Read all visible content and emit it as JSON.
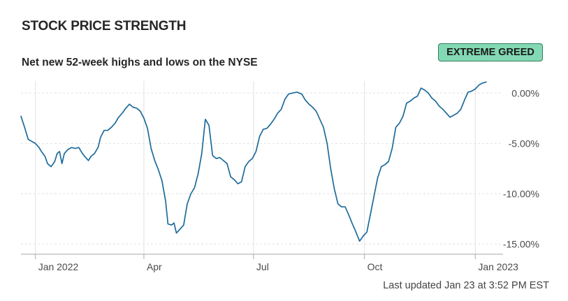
{
  "header": {
    "title": "STOCK PRICE STRENGTH",
    "subtitle": "Net new 52-week highs and lows on the NYSE",
    "badge": "EXTREME GREED"
  },
  "footer": {
    "updated": "Last updated Jan 23 at 3:52 PM EST"
  },
  "colors": {
    "line": "#1e6b9a",
    "badge_bg": "#83d9b4",
    "grid": "#e2e2e2",
    "axis": "#aaaaaa"
  },
  "chart_data": {
    "type": "line",
    "title": "STOCK PRICE STRENGTH",
    "subtitle": "Net new 52-week highs and lows on the NYSE",
    "x_ticks": [
      {
        "label": "Jan 2022",
        "date": "2022-01-01"
      },
      {
        "label": "Apr",
        "date": "2022-04-01"
      },
      {
        "label": "Jul",
        "date": "2022-07-01"
      },
      {
        "label": "Oct",
        "date": "2022-10-01"
      },
      {
        "label": "Jan 2023",
        "date": "2023-01-01"
      }
    ],
    "y_ticks": [
      {
        "label": "0.00%",
        "value": 0
      },
      {
        "label": "-5.00%",
        "value": -5
      },
      {
        "label": "-10.00%",
        "value": -10
      },
      {
        "label": "-15.00%",
        "value": -15
      }
    ],
    "xlim": [
      "2021-12-20",
      "2023-01-24"
    ],
    "ylim": [
      -16,
      1.2
    ],
    "grid": "dashed horizontal, solid vertical",
    "series": [
      {
        "points": [
          [
            "2021-12-20",
            -2.3
          ],
          [
            "2021-12-23",
            -3.4
          ],
          [
            "2021-12-26",
            -4.6
          ],
          [
            "2021-12-29",
            -4.8
          ],
          [
            "2022-01-01",
            -5.0
          ],
          [
            "2022-01-04",
            -5.4
          ],
          [
            "2022-01-06",
            -5.8
          ],
          [
            "2022-01-09",
            -6.3
          ],
          [
            "2022-01-11",
            -7.0
          ],
          [
            "2022-01-14",
            -7.3
          ],
          [
            "2022-01-17",
            -6.8
          ],
          [
            "2022-01-19",
            -6.0
          ],
          [
            "2022-01-21",
            -5.8
          ],
          [
            "2022-01-23",
            -7.0
          ],
          [
            "2022-01-25",
            -6.0
          ],
          [
            "2022-01-28",
            -5.6
          ],
          [
            "2022-01-31",
            -5.4
          ],
          [
            "2022-02-03",
            -5.5
          ],
          [
            "2022-02-06",
            -5.4
          ],
          [
            "2022-02-09",
            -6.0
          ],
          [
            "2022-02-11",
            -6.3
          ],
          [
            "2022-02-14",
            -6.7
          ],
          [
            "2022-02-16",
            -6.3
          ],
          [
            "2022-02-19",
            -6.0
          ],
          [
            "2022-02-22",
            -5.4
          ],
          [
            "2022-02-24",
            -4.4
          ],
          [
            "2022-02-27",
            -3.7
          ],
          [
            "2022-03-02",
            -3.7
          ],
          [
            "2022-03-05",
            -3.4
          ],
          [
            "2022-03-08",
            -3.0
          ],
          [
            "2022-03-11",
            -2.4
          ],
          [
            "2022-03-14",
            -2.0
          ],
          [
            "2022-03-17",
            -1.5
          ],
          [
            "2022-03-20",
            -1.1
          ],
          [
            "2022-03-23",
            -1.4
          ],
          [
            "2022-03-26",
            -1.5
          ],
          [
            "2022-03-29",
            -1.8
          ],
          [
            "2022-04-01",
            -2.5
          ],
          [
            "2022-04-04",
            -3.5
          ],
          [
            "2022-04-07",
            -5.5
          ],
          [
            "2022-04-10",
            -6.7
          ],
          [
            "2022-04-13",
            -7.6
          ],
          [
            "2022-04-16",
            -8.7
          ],
          [
            "2022-04-19",
            -10.7
          ],
          [
            "2022-04-21",
            -13.0
          ],
          [
            "2022-04-24",
            -13.1
          ],
          [
            "2022-04-26",
            -12.9
          ],
          [
            "2022-04-28",
            -13.9
          ],
          [
            "2022-05-01",
            -13.5
          ],
          [
            "2022-05-04",
            -13.1
          ],
          [
            "2022-05-07",
            -11.0
          ],
          [
            "2022-05-10",
            -10.0
          ],
          [
            "2022-05-13",
            -9.4
          ],
          [
            "2022-05-16",
            -8.0
          ],
          [
            "2022-05-19",
            -6.0
          ],
          [
            "2022-05-22",
            -2.6
          ],
          [
            "2022-05-25",
            -3.2
          ],
          [
            "2022-05-28",
            -6.2
          ],
          [
            "2022-05-31",
            -6.5
          ],
          [
            "2022-06-03",
            -6.4
          ],
          [
            "2022-06-06",
            -6.7
          ],
          [
            "2022-06-09",
            -7.0
          ],
          [
            "2022-06-12",
            -8.3
          ],
          [
            "2022-06-15",
            -8.6
          ],
          [
            "2022-06-18",
            -9.0
          ],
          [
            "2022-06-21",
            -8.8
          ],
          [
            "2022-06-24",
            -7.3
          ],
          [
            "2022-06-27",
            -6.8
          ],
          [
            "2022-06-30",
            -6.5
          ],
          [
            "2022-07-03",
            -5.8
          ],
          [
            "2022-07-06",
            -4.3
          ],
          [
            "2022-07-09",
            -3.6
          ],
          [
            "2022-07-12",
            -3.5
          ],
          [
            "2022-07-15",
            -3.1
          ],
          [
            "2022-07-18",
            -2.6
          ],
          [
            "2022-07-21",
            -2.0
          ],
          [
            "2022-07-24",
            -1.6
          ],
          [
            "2022-07-27",
            -0.6
          ],
          [
            "2022-07-30",
            -0.1
          ],
          [
            "2022-08-02",
            0.0
          ],
          [
            "2022-08-06",
            0.1
          ],
          [
            "2022-08-10",
            -0.1
          ],
          [
            "2022-08-13",
            -0.7
          ],
          [
            "2022-08-16",
            -1.1
          ],
          [
            "2022-08-19",
            -1.4
          ],
          [
            "2022-08-22",
            -1.8
          ],
          [
            "2022-08-25",
            -2.6
          ],
          [
            "2022-08-28",
            -3.4
          ],
          [
            "2022-08-31",
            -5.0
          ],
          [
            "2022-09-03",
            -7.5
          ],
          [
            "2022-09-06",
            -9.5
          ],
          [
            "2022-09-09",
            -11.0
          ],
          [
            "2022-09-12",
            -11.3
          ],
          [
            "2022-09-15",
            -11.3
          ],
          [
            "2022-09-18",
            -12.1
          ],
          [
            "2022-09-21",
            -13.0
          ],
          [
            "2022-09-24",
            -13.8
          ],
          [
            "2022-09-27",
            -14.7
          ],
          [
            "2022-09-30",
            -14.2
          ],
          [
            "2022-10-03",
            -13.8
          ],
          [
            "2022-10-06",
            -12.0
          ],
          [
            "2022-10-09",
            -10.2
          ],
          [
            "2022-10-12",
            -8.4
          ],
          [
            "2022-10-15",
            -7.3
          ],
          [
            "2022-10-18",
            -7.1
          ],
          [
            "2022-10-21",
            -6.8
          ],
          [
            "2022-10-24",
            -5.5
          ],
          [
            "2022-10-27",
            -3.4
          ],
          [
            "2022-10-30",
            -3.0
          ],
          [
            "2022-11-02",
            -2.3
          ],
          [
            "2022-11-05",
            -1.0
          ],
          [
            "2022-11-08",
            -0.8
          ],
          [
            "2022-11-11",
            -0.5
          ],
          [
            "2022-11-14",
            -0.3
          ],
          [
            "2022-11-17",
            0.5
          ],
          [
            "2022-11-20",
            0.3
          ],
          [
            "2022-11-23",
            0.0
          ],
          [
            "2022-11-26",
            -0.5
          ],
          [
            "2022-11-29",
            -0.8
          ],
          [
            "2022-12-02",
            -1.3
          ],
          [
            "2022-12-05",
            -1.6
          ],
          [
            "2022-12-08",
            -2.0
          ],
          [
            "2022-12-11",
            -2.4
          ],
          [
            "2022-12-14",
            -2.2
          ],
          [
            "2022-12-17",
            -2.0
          ],
          [
            "2022-12-20",
            -1.6
          ],
          [
            "2022-12-23",
            -0.7
          ],
          [
            "2022-12-26",
            0.1
          ],
          [
            "2022-12-29",
            0.2
          ],
          [
            "2023-01-01",
            0.4
          ],
          [
            "2023-01-04",
            0.8
          ],
          [
            "2023-01-07",
            1.0
          ],
          [
            "2023-01-10",
            1.1
          ]
        ]
      }
    ]
  }
}
